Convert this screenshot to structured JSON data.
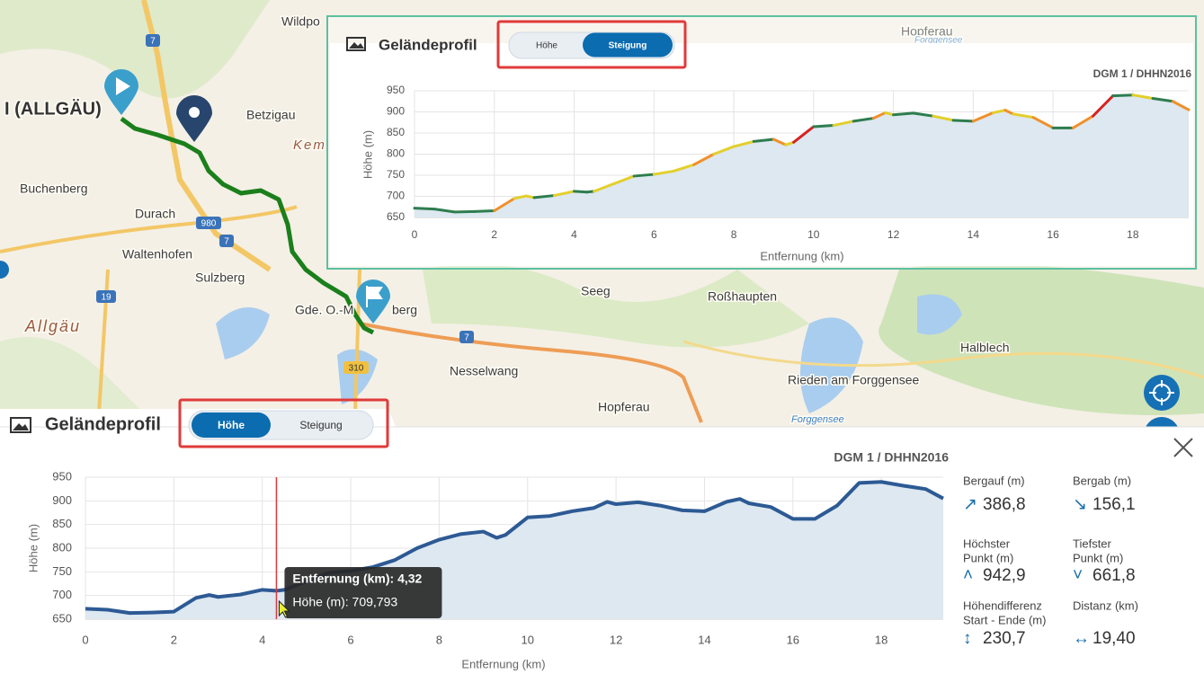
{
  "map": {
    "labels": [
      "Wildpo",
      "I (ALLGÄU)",
      "Betzigau",
      "Kem",
      "Buchenberg",
      "Durach",
      "Waltenhofen",
      "Sulzberg",
      "Allgäu",
      "Gde. O.-M",
      "berg",
      "Seeg",
      "Roßhaupten",
      "Nesselwang",
      "Hopferau",
      "Halblech",
      "Rieden am Forggensee",
      "Hopferau",
      "Forggensee",
      "Forggensee"
    ],
    "road_numbers": [
      "7",
      "980",
      "7",
      "19",
      "310",
      "7"
    ]
  },
  "chart_data": [
    {
      "type": "line",
      "title": "Geländeprofil",
      "toggle": [
        "Höhe",
        "Steigung"
      ],
      "active_toggle": 1,
      "source": "DGM 1 / DHHN2016",
      "x_label": "Entfernung (km)",
      "y_label": "Höhe (m)",
      "line_coloring": "slope",
      "grid": true,
      "x": [
        0,
        0.5,
        1,
        1.5,
        2,
        2.5,
        2.8,
        3,
        3.5,
        4,
        4.32,
        4.5,
        5,
        5.5,
        6,
        6.5,
        7,
        7.5,
        8,
        8.5,
        9,
        9.3,
        9.5,
        10,
        10.5,
        11,
        11.5,
        11.8,
        12,
        12.5,
        13,
        13.5,
        14,
        14.5,
        14.8,
        15,
        15.5,
        16,
        16.5,
        17,
        17.5,
        18,
        18.5,
        19,
        19.4
      ],
      "values": [
        672,
        670,
        663,
        664,
        666,
        695,
        701,
        697,
        702,
        712,
        710,
        712,
        730,
        748,
        752,
        760,
        775,
        800,
        818,
        830,
        835,
        822,
        828,
        865,
        868,
        878,
        885,
        898,
        893,
        897,
        890,
        880,
        878,
        898,
        904,
        895,
        887,
        862,
        862,
        890,
        938,
        940,
        932,
        925,
        905
      ],
      "xlim": [
        0,
        19.4
      ],
      "ylim": [
        650,
        950
      ],
      "xticks": [
        0,
        2,
        4,
        6,
        8,
        10,
        12,
        14,
        16,
        18
      ],
      "yticks": [
        650,
        700,
        750,
        800,
        850,
        900,
        950
      ]
    },
    {
      "type": "line",
      "title": "Geländeprofil",
      "toggle": [
        "Höhe",
        "Steigung"
      ],
      "active_toggle": 0,
      "source": "DGM 1 / DHHN2016",
      "x_label": "Entfernung (km)",
      "y_label": "Höhe (m)",
      "color": "#2d5a94",
      "grid": true,
      "x": [
        0,
        0.5,
        1,
        1.5,
        2,
        2.5,
        2.8,
        3,
        3.5,
        4,
        4.32,
        4.5,
        5,
        5.5,
        6,
        6.5,
        7,
        7.5,
        8,
        8.5,
        9,
        9.3,
        9.5,
        10,
        10.5,
        11,
        11.5,
        11.8,
        12,
        12.5,
        13,
        13.5,
        14,
        14.5,
        14.8,
        15,
        15.5,
        16,
        16.5,
        17,
        17.5,
        18,
        18.5,
        19,
        19.4
      ],
      "values": [
        672,
        670,
        663,
        664,
        666,
        695,
        701,
        697,
        702,
        712,
        710,
        712,
        730,
        748,
        752,
        760,
        775,
        800,
        818,
        830,
        835,
        822,
        828,
        865,
        868,
        878,
        885,
        898,
        893,
        897,
        890,
        880,
        878,
        898,
        904,
        895,
        887,
        862,
        862,
        890,
        938,
        940,
        932,
        925,
        905
      ],
      "xlim": [
        0,
        19.4
      ],
      "ylim": [
        650,
        950
      ],
      "xticks": [
        0,
        2,
        4,
        6,
        8,
        10,
        12,
        14,
        16,
        18
      ],
      "yticks": [
        650,
        700,
        750,
        800,
        850,
        900,
        950
      ],
      "tooltip": {
        "x": 4.32,
        "lines": [
          "Entfernung (km): 4,32",
          "Höhe (m): 709,793"
        ]
      }
    }
  ],
  "stats": [
    {
      "label": [
        "Bergauf (m)"
      ],
      "icon": "↗",
      "value": "386,8"
    },
    {
      "label": [
        "Bergab (m)"
      ],
      "icon": "↘",
      "value": "156,1"
    },
    {
      "label": [
        "Höchster",
        "Punkt (m)"
      ],
      "icon": "˄",
      "value": "942,9"
    },
    {
      "label": [
        "Tiefster",
        "Punkt (m)"
      ],
      "icon": "˅",
      "value": "661,8"
    },
    {
      "label": [
        "Höhendifferenz",
        "Start - Ende (m)"
      ],
      "icon": "↕",
      "value": "230,7"
    },
    {
      "label": [
        "Distanz (km)"
      ],
      "icon": "↔",
      "value": "19,40"
    }
  ]
}
